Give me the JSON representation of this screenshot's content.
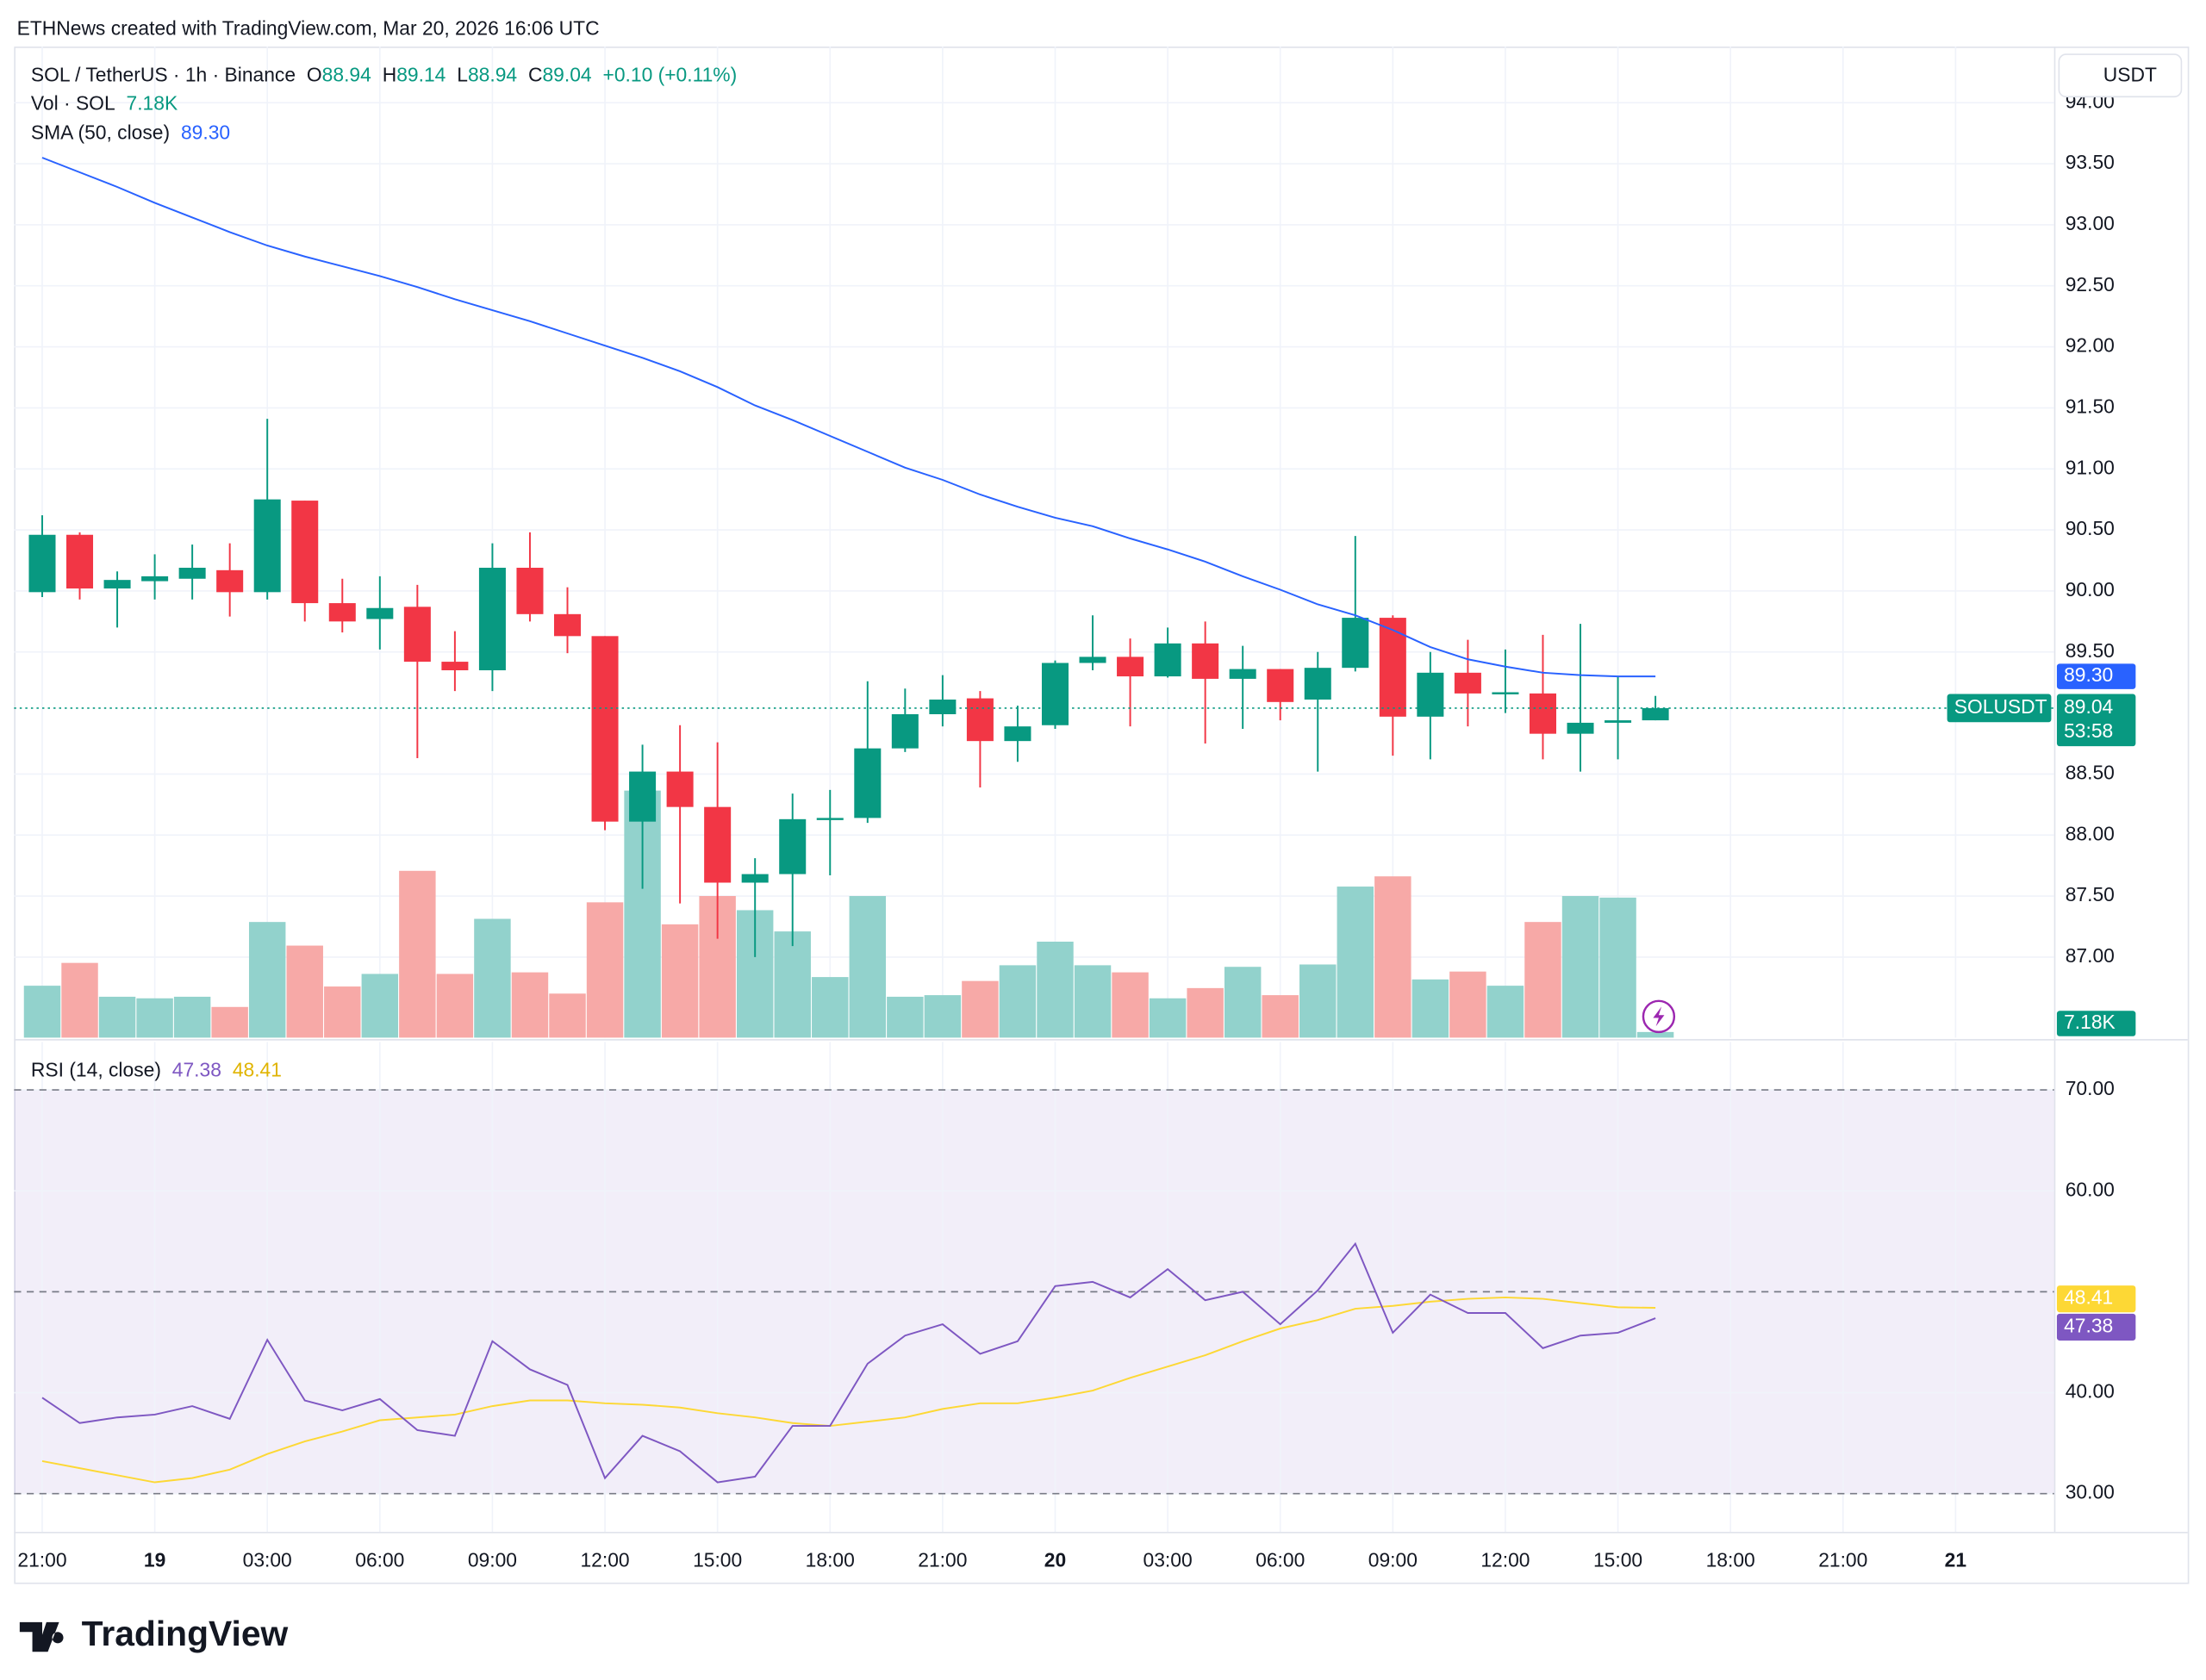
{
  "header": "ETHNews created with TradingView.com, Mar 20, 2026 16:06 UTC",
  "footer": "TradingView",
  "chart_data": {
    "type": "candlestick",
    "symbol": "SOL / TetherUS · 1h · Binance",
    "ticker": "SOLUSDT",
    "currency": "USDT",
    "countdown": "53:58",
    "change_label": "+0.10 (+0.11%)",
    "ohlc_labels": [
      "O",
      "H",
      "L",
      "C"
    ],
    "up_color": "#089981",
    "down_color": "#f23645",
    "grid": true,
    "categories": [
      "21:00",
      null,
      null,
      "19",
      null,
      null,
      "03:00",
      null,
      null,
      "06:00",
      null,
      null,
      "09:00",
      null,
      null,
      "12:00",
      null,
      null,
      "15:00",
      null,
      null,
      "18:00",
      null,
      null,
      "21:00",
      null,
      null,
      "20",
      null,
      null,
      "03:00",
      null,
      null,
      "06:00",
      null,
      null,
      "09:00",
      null,
      null,
      "12:00",
      null,
      null,
      "15:00",
      null,
      null,
      "18:00",
      null,
      null,
      "21:00",
      null,
      null,
      "21"
    ],
    "open": [
      89.99,
      90.46,
      90.02,
      90.08,
      90.1,
      90.17,
      89.99,
      90.74,
      89.9,
      89.77,
      89.87,
      89.42,
      89.35,
      90.19,
      89.81,
      89.63,
      88.11,
      88.52,
      88.23,
      87.61,
      87.68,
      88.13,
      88.14,
      88.71,
      88.99,
      89.12,
      88.77,
      88.9,
      89.41,
      89.46,
      89.3,
      89.57,
      89.28,
      89.36,
      89.11,
      89.37,
      89.78,
      88.97,
      89.33,
      89.16,
      89.16,
      88.83,
      88.92,
      88.94,
      null,
      null,
      null,
      null,
      null,
      null,
      null,
      null
    ],
    "high": [
      90.62,
      90.48,
      90.16,
      90.3,
      90.38,
      90.39,
      91.41,
      90.74,
      90.1,
      90.12,
      90.05,
      89.67,
      90.39,
      90.48,
      90.03,
      89.63,
      88.74,
      88.9,
      88.76,
      87.81,
      88.34,
      88.37,
      89.26,
      89.2,
      89.31,
      89.18,
      89.06,
      89.43,
      89.8,
      89.61,
      89.7,
      89.75,
      89.55,
      89.36,
      89.5,
      90.45,
      89.8,
      89.5,
      89.6,
      89.52,
      89.64,
      89.73,
      89.3,
      89.14,
      null,
      null,
      null,
      null,
      null,
      null,
      null,
      null
    ],
    "low": [
      89.95,
      89.93,
      89.7,
      89.93,
      89.93,
      89.79,
      89.93,
      89.75,
      89.66,
      89.52,
      88.63,
      89.18,
      89.18,
      89.75,
      89.49,
      88.04,
      87.56,
      87.44,
      87.15,
      87.0,
      87.09,
      87.67,
      88.1,
      88.68,
      88.89,
      88.39,
      88.6,
      88.87,
      89.35,
      88.89,
      89.29,
      88.75,
      88.87,
      88.94,
      88.52,
      89.34,
      88.65,
      88.62,
      88.89,
      89.0,
      88.62,
      88.52,
      88.62,
      88.94,
      null,
      null,
      null,
      null,
      null,
      null,
      null,
      null
    ],
    "close": [
      90.46,
      90.02,
      90.09,
      90.12,
      90.19,
      89.99,
      90.75,
      89.9,
      89.75,
      89.86,
      89.42,
      89.35,
      90.19,
      89.81,
      89.63,
      88.11,
      88.52,
      88.23,
      87.61,
      87.68,
      88.13,
      88.14,
      88.71,
      88.99,
      89.11,
      88.77,
      88.89,
      89.41,
      89.46,
      89.3,
      89.57,
      89.28,
      89.36,
      89.09,
      89.37,
      89.78,
      88.97,
      89.33,
      89.16,
      89.17,
      88.83,
      88.92,
      88.94,
      89.04,
      null,
      null,
      null,
      null,
      null,
      null,
      null,
      null
    ],
    "ylim": [
      86.34,
      94.46
    ],
    "yticks": [
      {
        "value": 87,
        "label": "87.00"
      },
      {
        "value": 87.5,
        "label": "87.50"
      },
      {
        "value": 88,
        "label": "88.00"
      },
      {
        "value": 88.5,
        "label": "88.50"
      },
      {
        "value": 89.5,
        "label": "89.50"
      },
      {
        "value": 90,
        "label": "90.00"
      },
      {
        "value": 90.5,
        "label": "90.50"
      },
      {
        "value": 91,
        "label": "91.00"
      },
      {
        "value": 91.5,
        "label": "91.50"
      },
      {
        "value": 92,
        "label": "92.00"
      },
      {
        "value": 92.5,
        "label": "92.50"
      },
      {
        "value": 93,
        "label": "93.00"
      },
      {
        "value": 93.5,
        "label": "93.50"
      },
      {
        "value": 94,
        "label": "94.00"
      }
    ],
    "sma": {
      "name": "SMA (50, close)",
      "color": "#2962ff",
      "values": [
        93.55,
        93.43,
        93.31,
        93.18,
        93.06,
        92.94,
        92.83,
        92.74,
        92.66,
        92.58,
        92.49,
        92.39,
        92.3,
        92.21,
        92.11,
        92.01,
        91.91,
        91.8,
        91.67,
        91.52,
        91.4,
        91.27,
        91.14,
        91.01,
        90.91,
        90.79,
        90.69,
        90.6,
        90.53,
        90.43,
        90.34,
        90.24,
        90.12,
        90.01,
        89.89,
        89.8,
        89.68,
        89.54,
        89.44,
        89.38,
        89.33,
        89.31,
        89.3,
        89.3,
        null,
        null,
        null,
        null,
        null,
        null,
        null,
        null
      ],
      "value_labels": [
        null,
        null,
        null,
        null,
        null,
        null,
        null,
        null,
        null,
        null,
        null,
        null,
        null,
        null,
        null,
        null,
        null,
        null,
        null,
        null,
        null,
        null,
        null,
        null,
        null,
        null,
        null,
        null,
        null,
        null,
        null,
        null,
        null,
        null,
        null,
        null,
        null,
        null,
        null,
        null,
        null,
        null,
        null,
        "89.30",
        null,
        null,
        null,
        null,
        null,
        null,
        null,
        null
      ]
    },
    "volume": {
      "name": "Vol · SOL",
      "up_color": "#92d2cc",
      "down_color": "#f7a9a7",
      "values": [
        66,
        95,
        52,
        50,
        52,
        39,
        147,
        117,
        65,
        81,
        212,
        81,
        151,
        83,
        56,
        172,
        314,
        144,
        180,
        162,
        135,
        77,
        180,
        52,
        54,
        72,
        92,
        122,
        92,
        83,
        50,
        63,
        90,
        54,
        93,
        192,
        205,
        74,
        84,
        66,
        147,
        180,
        178,
        7.18,
        null,
        null,
        null,
        null,
        null,
        null,
        null,
        null
      ],
      "value_labels": [
        null,
        null,
        null,
        null,
        null,
        null,
        null,
        null,
        null,
        null,
        null,
        null,
        null,
        null,
        null,
        null,
        null,
        null,
        null,
        null,
        null,
        null,
        null,
        null,
        null,
        null,
        null,
        null,
        null,
        null,
        null,
        null,
        null,
        null,
        null,
        null,
        null,
        null,
        null,
        null,
        null,
        null,
        null,
        "7.18K",
        null,
        null,
        null,
        null,
        null,
        null,
        null,
        null
      ]
    },
    "rsi": {
      "name": "RSI (14, close)",
      "color": "#7e57c2",
      "ma_color": "#fdd835",
      "values": [
        39.51,
        36.99,
        37.55,
        37.83,
        38.67,
        37.41,
        45.24,
        39.23,
        38.25,
        39.37,
        36.29,
        35.73,
        45.1,
        42.31,
        40.77,
        31.54,
        35.73,
        34.2,
        31.12,
        31.68,
        36.71,
        36.71,
        42.87,
        45.66,
        46.78,
        43.85,
        45.1,
        50.56,
        50.98,
        49.44,
        52.24,
        49.16,
        50.0,
        46.78,
        50.14,
        54.76,
        45.94,
        49.72,
        47.9,
        47.9,
        44.41,
        45.66,
        45.94,
        47.38,
        null,
        null,
        null,
        null,
        null,
        null,
        null,
        null
      ],
      "ma_values": [
        33.22,
        32.52,
        31.82,
        31.12,
        31.54,
        32.38,
        33.92,
        35.17,
        36.15,
        37.27,
        37.55,
        37.83,
        38.67,
        39.23,
        39.23,
        38.95,
        38.81,
        38.53,
        37.97,
        37.55,
        36.99,
        36.71,
        37.13,
        37.55,
        38.39,
        38.95,
        38.95,
        39.51,
        40.21,
        41.47,
        42.59,
        43.71,
        45.1,
        46.36,
        47.2,
        48.32,
        48.6,
        49.02,
        49.3,
        49.44,
        49.3,
        48.88,
        48.46,
        48.41,
        null,
        null,
        null,
        null,
        null,
        null,
        null,
        null
      ],
      "levels": [
        70,
        50,
        30
      ],
      "ylim": [
        26.22,
        74.76
      ],
      "yticks": [
        {
          "value": 30,
          "label": "30.00"
        },
        {
          "value": 40,
          "label": "40.00"
        },
        {
          "value": 60,
          "label": "60.00"
        },
        {
          "value": 70,
          "label": "70.00"
        }
      ]
    }
  }
}
